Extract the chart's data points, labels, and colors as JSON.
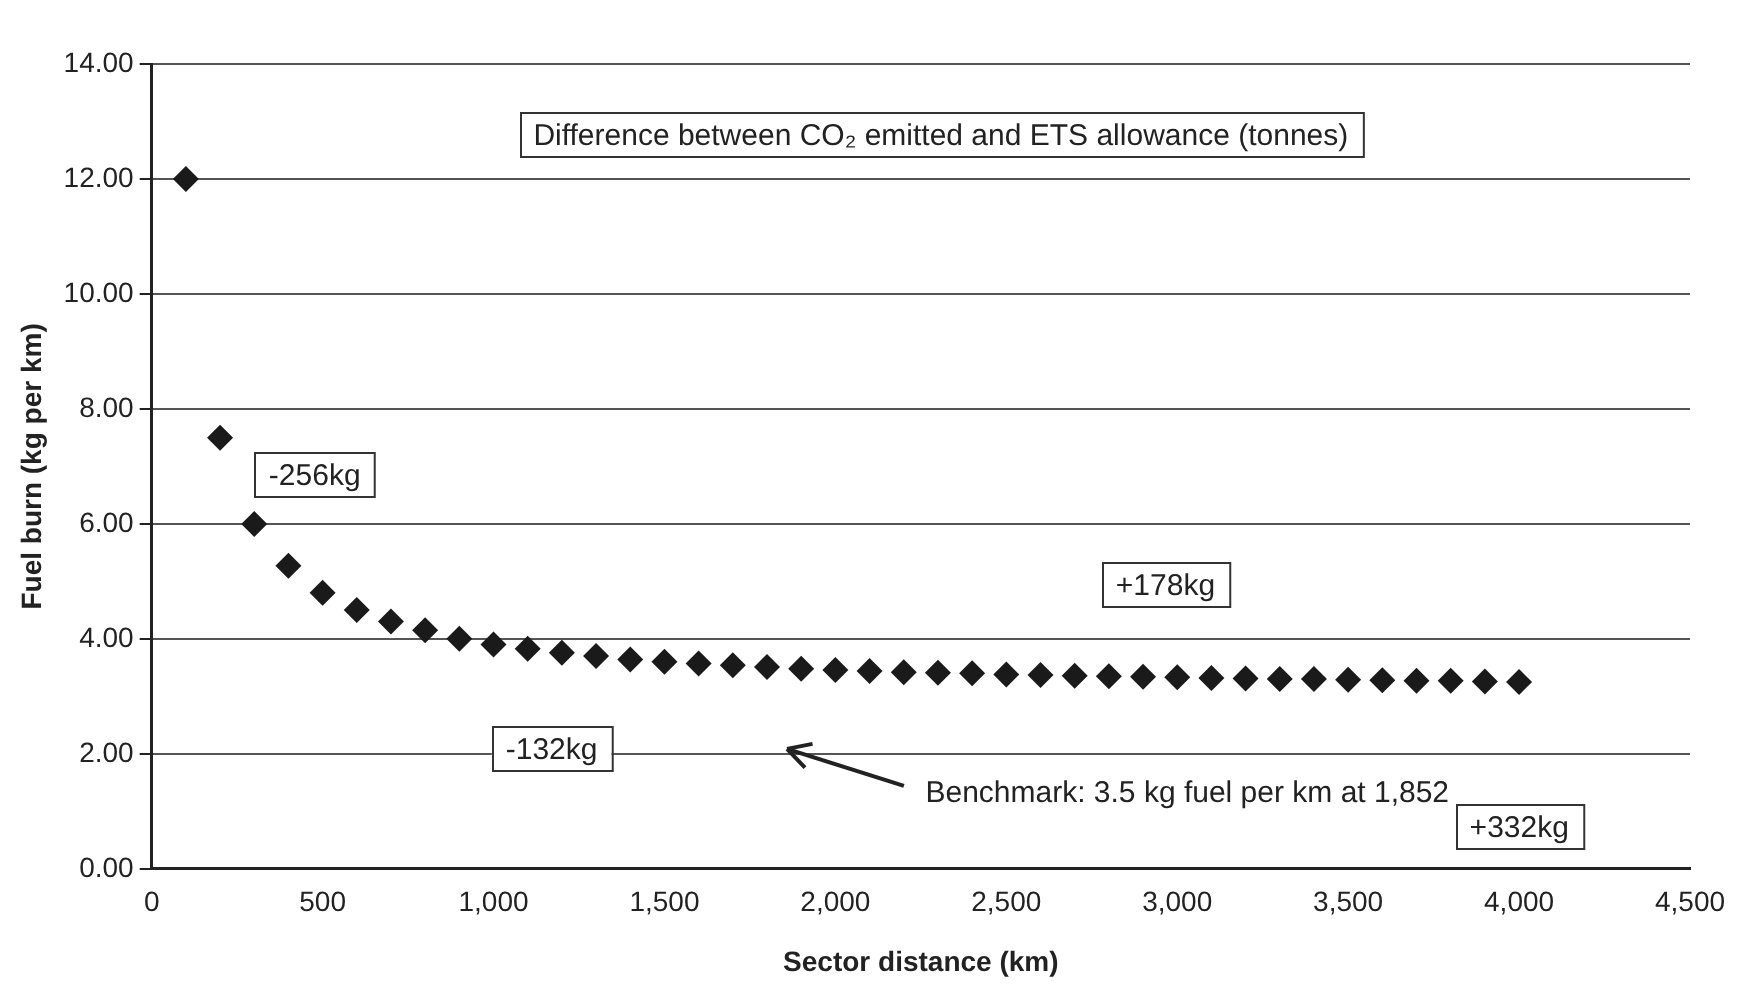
{
  "chart_data": {
    "type": "scatter",
    "title": "Difference between CO₂ emitted and ETS allowance (tonnes)",
    "xlabel": "Sector distance (km)",
    "ylabel": "Fuel burn (kg per km)",
    "x": [
      100,
      200,
      300,
      400,
      500,
      600,
      700,
      800,
      900,
      1000,
      1100,
      1200,
      1300,
      1400,
      1500,
      1600,
      1700,
      1800,
      1900,
      2000,
      2100,
      2200,
      2300,
      2400,
      2500,
      2600,
      2700,
      2800,
      2900,
      3000,
      3100,
      3200,
      3300,
      3400,
      3500,
      3600,
      3700,
      3800,
      3900,
      4000
    ],
    "series": [
      {
        "color": "#1a1a1a",
        "values": [
          12.0,
          7.5,
          6.0,
          5.27,
          4.8,
          4.5,
          4.3,
          4.15,
          4.0,
          3.9,
          3.83,
          3.76,
          3.7,
          3.64,
          3.6,
          3.57,
          3.54,
          3.51,
          3.48,
          3.46,
          3.44,
          3.42,
          3.41,
          3.4,
          3.38,
          3.37,
          3.36,
          3.35,
          3.34,
          3.33,
          3.32,
          3.31,
          3.3,
          3.3,
          3.29,
          3.28,
          3.27,
          3.27,
          3.26,
          3.25
        ]
      }
    ],
    "xlim": [
      0,
      4500
    ],
    "ylim": [
      0,
      14
    ],
    "xticks": [
      0,
      500,
      {
        "value": 1000,
        "label": "1,000"
      },
      {
        "value": 1500,
        "label": "1,500"
      },
      {
        "value": 2000,
        "label": "2,000"
      },
      {
        "value": 2500,
        "label": "2,500"
      },
      {
        "value": 3000,
        "label": "3,000"
      },
      {
        "value": 3500,
        "label": "3,500"
      },
      {
        "value": 4000,
        "label": "4,000"
      },
      {
        "value": 4500,
        "label": "4,500"
      }
    ],
    "yticks": [
      {
        "value": 0,
        "label": "0.00"
      },
      {
        "value": 2,
        "label": "2.00"
      },
      {
        "value": 4,
        "label": "4.00"
      },
      {
        "value": 6,
        "label": "6.00"
      },
      {
        "value": 8,
        "label": "8.00"
      },
      {
        "value": 10,
        "label": "10.00"
      },
      {
        "value": 12,
        "label": "12.00"
      },
      {
        "value": 14,
        "label": "14.00"
      }
    ],
    "annotations": [
      "-256kg",
      "-132kg",
      "+178kg",
      "+332kg",
      "Benchmark: 3.5 kg fuel per km at 1,852"
    ],
    "grid": "y",
    "marker": "diamond",
    "legend": false
  }
}
